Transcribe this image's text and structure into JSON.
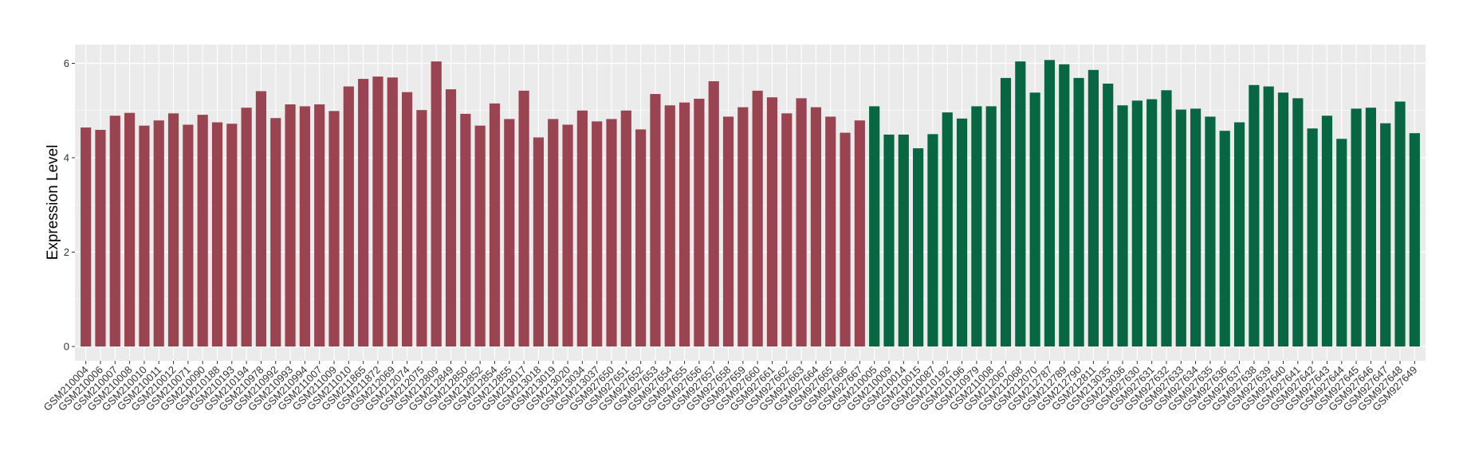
{
  "chart_data": {
    "type": "bar",
    "title": "",
    "xlabel": "",
    "ylabel": "Expression Level",
    "ylim": [
      0,
      6.35
    ],
    "yticks": [
      0,
      2,
      4,
      6
    ],
    "grid": true,
    "legend": "none",
    "colors": {
      "group1": "#9b4451",
      "group2": "#076742",
      "panel": "#ebebeb",
      "gridline": "#ffffff"
    },
    "categories": [
      "GSM210004",
      "GSM210006",
      "GSM210007",
      "GSM210008",
      "GSM210010",
      "GSM210011",
      "GSM210012",
      "GSM210071",
      "GSM210090",
      "GSM210188",
      "GSM210193",
      "GSM210194",
      "GSM210978",
      "GSM210992",
      "GSM210993",
      "GSM210994",
      "GSM211007",
      "GSM211009",
      "GSM211010",
      "GSM211865",
      "GSM211872",
      "GSM212069",
      "GSM212074",
      "GSM212075",
      "GSM212809",
      "GSM212849",
      "GSM212850",
      "GSM212852",
      "GSM212854",
      "GSM212855",
      "GSM213017",
      "GSM213018",
      "GSM213019",
      "GSM213020",
      "GSM213034",
      "GSM213037",
      "GSM927650",
      "GSM927651",
      "GSM927652",
      "GSM927653",
      "GSM927654",
      "GSM927655",
      "GSM927656",
      "GSM927657",
      "GSM927658",
      "GSM927659",
      "GSM927660",
      "GSM927661",
      "GSM927662",
      "GSM927663",
      "GSM927664",
      "GSM927665",
      "GSM927666",
      "GSM927667",
      "GSM210005",
      "GSM210009",
      "GSM210014",
      "GSM210015",
      "GSM210087",
      "GSM210192",
      "GSM210196",
      "GSM210979",
      "GSM211008",
      "GSM212067",
      "GSM212068",
      "GSM212070",
      "GSM212787",
      "GSM212789",
      "GSM212790",
      "GSM212811",
      "GSM213035",
      "GSM213036",
      "GSM927630",
      "GSM927631",
      "GSM927632",
      "GSM927633",
      "GSM927634",
      "GSM927635",
      "GSM927636",
      "GSM927637",
      "GSM927638",
      "GSM927639",
      "GSM927640",
      "GSM927641",
      "GSM927642",
      "GSM927643",
      "GSM927644",
      "GSM927645",
      "GSM927646",
      "GSM927647",
      "GSM927648",
      "GSM927649"
    ],
    "values": [
      4.64,
      4.59,
      4.89,
      4.95,
      4.68,
      4.79,
      4.94,
      4.7,
      4.91,
      4.75,
      4.72,
      5.06,
      5.41,
      4.84,
      5.13,
      5.09,
      5.13,
      4.99,
      5.51,
      5.67,
      5.72,
      5.7,
      5.39,
      5.01,
      6.04,
      5.45,
      4.93,
      4.68,
      5.15,
      4.82,
      5.42,
      4.43,
      4.82,
      4.7,
      5.0,
      4.77,
      4.82,
      5.0,
      4.6,
      5.35,
      5.11,
      5.17,
      5.25,
      5.62,
      4.87,
      5.07,
      5.42,
      5.28,
      4.94,
      5.26,
      5.07,
      4.87,
      4.53,
      4.79,
      5.09,
      4.49,
      4.49,
      4.2,
      4.5,
      4.96,
      4.83,
      5.09,
      5.09,
      5.69,
      6.04,
      5.38,
      6.07,
      5.98,
      5.69,
      5.86,
      5.57,
      5.11,
      5.21,
      5.24,
      5.43,
      5.02,
      5.04,
      4.87,
      4.57,
      4.75,
      5.54,
      5.51,
      5.38,
      5.26,
      4.62,
      4.89,
      4.4,
      5.04,
      5.06,
      4.73,
      5.19,
      4.52
    ],
    "group_sizes": [
      54,
      38
    ]
  }
}
